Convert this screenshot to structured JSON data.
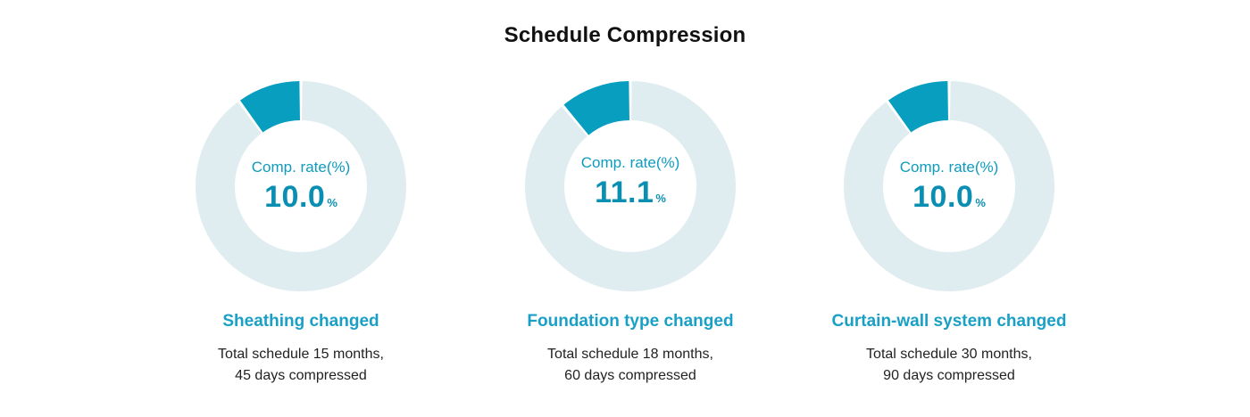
{
  "title": "Schedule Compression",
  "colors": {
    "accent": "#079ec0",
    "track": "#e0edf0",
    "label": "#0f9bbd",
    "caption": "#1aa0c6"
  },
  "chart_data": [
    {
      "type": "pie",
      "variant": "donut",
      "center_label": "Comp. rate(%)",
      "value": 10.0,
      "value_text": "10.0",
      "unit": "%",
      "caption": "Sheathing changed",
      "desc_line1": "Total schedule 15 months,",
      "desc_line2": "45 days compressed"
    },
    {
      "type": "pie",
      "variant": "donut",
      "center_label": "Comp. rate(%)",
      "value": 11.1,
      "value_text": "11.1",
      "unit": "%",
      "caption": "Foundation type changed",
      "desc_line1": "Total schedule 18 months,",
      "desc_line2": "60 days compressed"
    },
    {
      "type": "pie",
      "variant": "donut",
      "center_label": "Comp. rate(%)",
      "value": 10.0,
      "value_text": "10.0",
      "unit": "%",
      "caption": "Curtain-wall system changed",
      "desc_line1": "Total schedule 30 months,",
      "desc_line2": "90 days compressed"
    }
  ]
}
